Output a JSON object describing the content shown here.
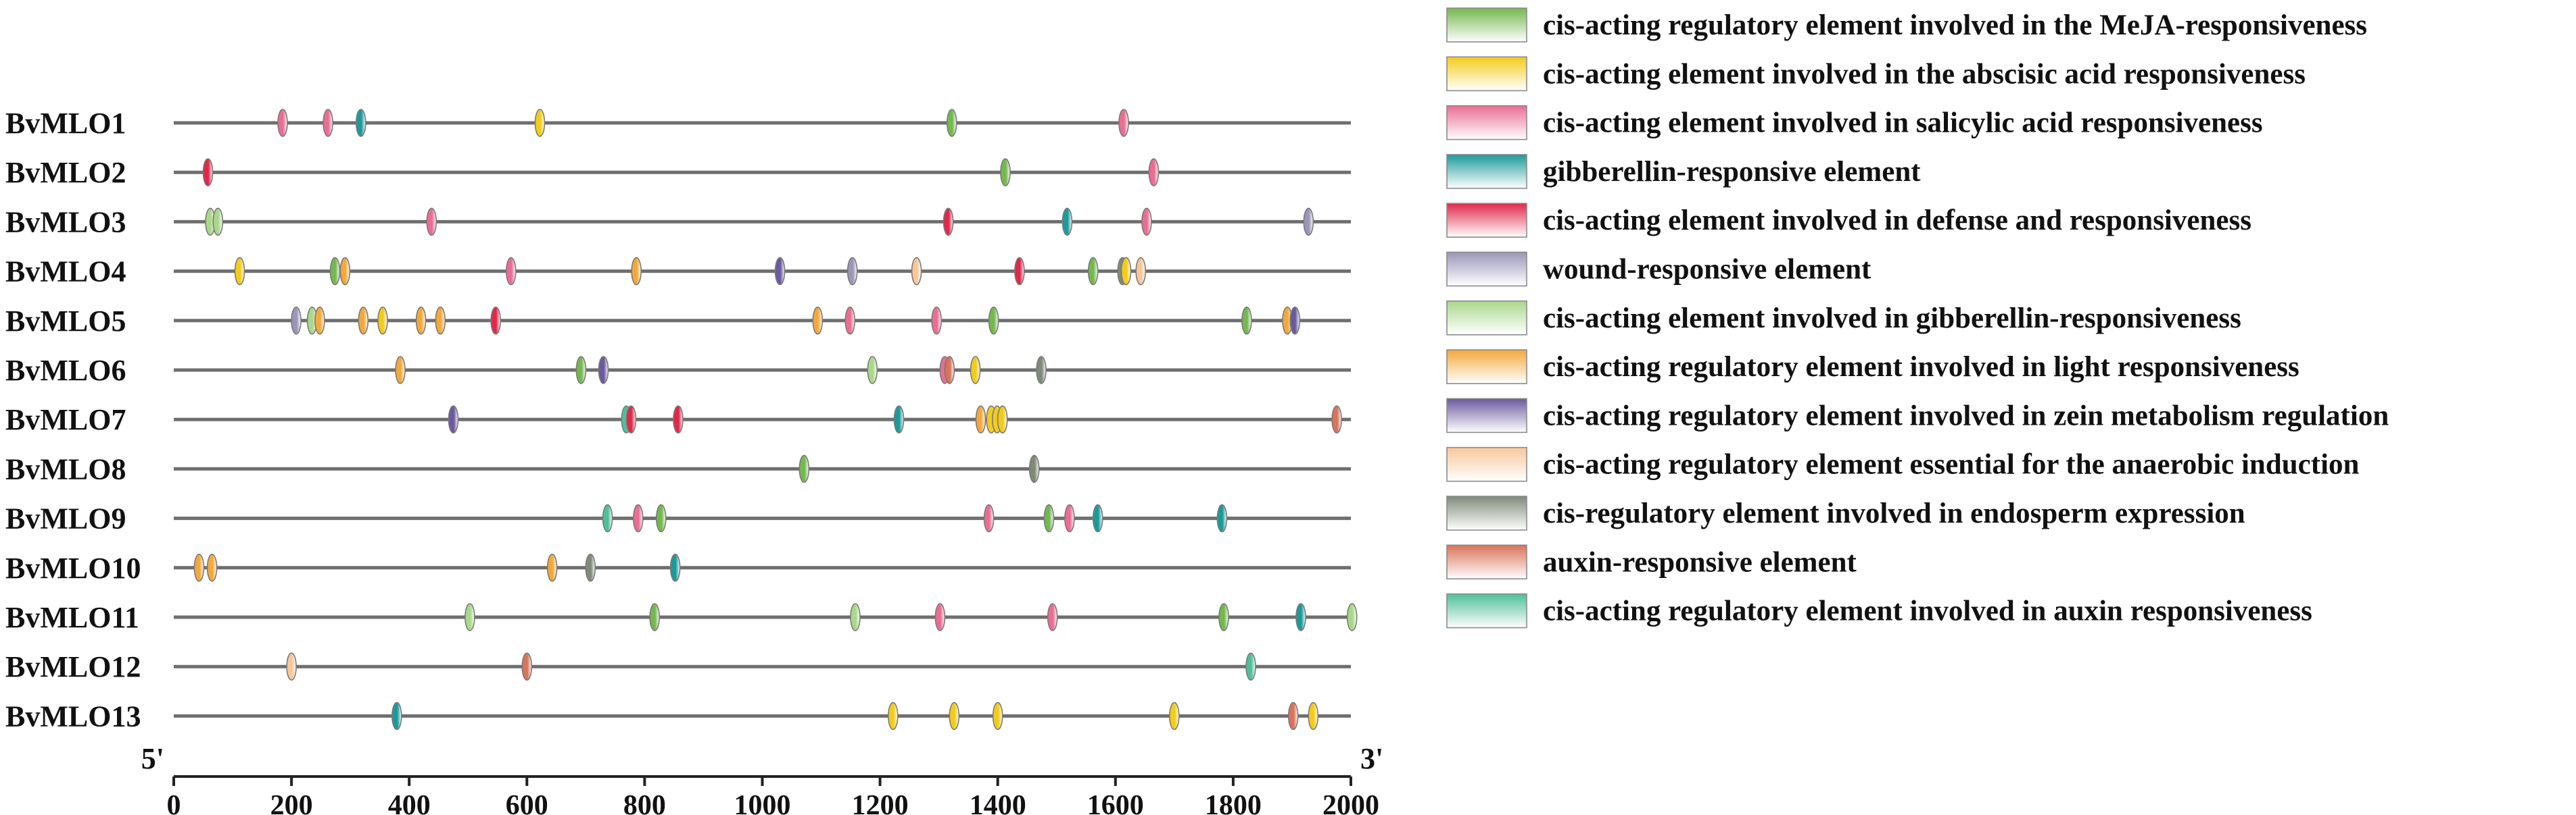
{
  "chart_data": {
    "type": "scatter",
    "title": "",
    "xlabel": "",
    "ylabel": "",
    "xlim": [
      0,
      2000
    ],
    "x_ticks": [
      0,
      200,
      400,
      600,
      800,
      1000,
      1200,
      1400,
      1600,
      1800,
      2000
    ],
    "end_labels": {
      "left": "5'",
      "right": "3'"
    },
    "legend": [
      {
        "key": "meja",
        "label": "cis-acting regulatory element involved in the MeJA-responsiveness",
        "color": "#74b84e"
      },
      {
        "key": "aba",
        "label": "cis-acting element involved in the abscisic acid responsiveness",
        "color": "#f2cc1a"
      },
      {
        "key": "sa",
        "label": "cis-acting element involved in salicylic acid responsiveness",
        "color": "#ea6d94"
      },
      {
        "key": "gib",
        "label": "gibberellin-responsive element",
        "color": "#1c9a9a"
      },
      {
        "key": "def",
        "label": "cis-acting element involved in defense and responsiveness",
        "color": "#e0284a"
      },
      {
        "key": "wound",
        "label": "wound-responsive element",
        "color": "#9a96b8"
      },
      {
        "key": "gib2",
        "label": "cis-acting element involved in gibberellin-responsiveness",
        "color": "#a9d88a"
      },
      {
        "key": "light",
        "label": "cis-acting regulatory element involved in light responsiveness",
        "color": "#f2a93b"
      },
      {
        "key": "zein",
        "label": "cis-acting regulatory element involved in zein metabolism regulation",
        "color": "#6c5a9e"
      },
      {
        "key": "anaer",
        "label": "cis-acting regulatory element essential for the anaerobic induction",
        "color": "#f7c79a"
      },
      {
        "key": "endo",
        "label": "cis-regulatory element involved in endosperm expression",
        "color": "#7f8a78"
      },
      {
        "key": "auxin",
        "label": "auxin-responsive element",
        "color": "#d9735a"
      },
      {
        "key": "auxin2",
        "label": "cis-acting regulatory element involved in auxin responsiveness",
        "color": "#4fbf9a"
      }
    ],
    "series": [
      {
        "name": "BvMLO1",
        "elements": [
          {
            "x": 185,
            "type": "sa"
          },
          {
            "x": 262,
            "type": "sa"
          },
          {
            "x": 318,
            "type": "gib"
          },
          {
            "x": 622,
            "type": "aba"
          },
          {
            "x": 1322,
            "type": "meja"
          },
          {
            "x": 1614,
            "type": "sa"
          }
        ]
      },
      {
        "name": "BvMLO2",
        "elements": [
          {
            "x": 58,
            "type": "def"
          },
          {
            "x": 1413,
            "type": "meja"
          },
          {
            "x": 1665,
            "type": "sa"
          }
        ]
      },
      {
        "name": "BvMLO3",
        "elements": [
          {
            "x": 62,
            "type": "gib2"
          },
          {
            "x": 75,
            "type": "gib2"
          },
          {
            "x": 438,
            "type": "sa"
          },
          {
            "x": 1316,
            "type": "def"
          },
          {
            "x": 1518,
            "type": "gib"
          },
          {
            "x": 1653,
            "type": "sa"
          },
          {
            "x": 1928,
            "type": "wound"
          }
        ]
      },
      {
        "name": "BvMLO4",
        "elements": [
          {
            "x": 112,
            "type": "aba"
          },
          {
            "x": 274,
            "type": "meja"
          },
          {
            "x": 291,
            "type": "light"
          },
          {
            "x": 573,
            "type": "sa"
          },
          {
            "x": 786,
            "type": "light"
          },
          {
            "x": 1030,
            "type": "zein"
          },
          {
            "x": 1153,
            "type": "wound"
          },
          {
            "x": 1262,
            "type": "anaer"
          },
          {
            "x": 1437,
            "type": "def"
          },
          {
            "x": 1562,
            "type": "meja"
          },
          {
            "x": 1612,
            "type": "endo"
          },
          {
            "x": 1618,
            "type": "aba"
          },
          {
            "x": 1643,
            "type": "anaer"
          }
        ]
      },
      {
        "name": "BvMLO5",
        "elements": [
          {
            "x": 208,
            "type": "wound"
          },
          {
            "x": 235,
            "type": "gib2"
          },
          {
            "x": 248,
            "type": "light"
          },
          {
            "x": 322,
            "type": "light"
          },
          {
            "x": 355,
            "type": "aba"
          },
          {
            "x": 420,
            "type": "light"
          },
          {
            "x": 453,
            "type": "light"
          },
          {
            "x": 547,
            "type": "def"
          },
          {
            "x": 1094,
            "type": "light"
          },
          {
            "x": 1149,
            "type": "sa"
          },
          {
            "x": 1296,
            "type": "sa"
          },
          {
            "x": 1393,
            "type": "meja"
          },
          {
            "x": 1823,
            "type": "meja"
          },
          {
            "x": 1892,
            "type": "light"
          },
          {
            "x": 1905,
            "type": "zein"
          }
        ]
      },
      {
        "name": "BvMLO6",
        "elements": [
          {
            "x": 385,
            "type": "light"
          },
          {
            "x": 692,
            "type": "meja"
          },
          {
            "x": 730,
            "type": "zein"
          },
          {
            "x": 1187,
            "type": "gib2"
          },
          {
            "x": 1310,
            "type": "sa"
          },
          {
            "x": 1318,
            "type": "auxin"
          },
          {
            "x": 1362,
            "type": "aba"
          },
          {
            "x": 1474,
            "type": "endo"
          }
        ]
      },
      {
        "name": "BvMLO7",
        "elements": [
          {
            "x": 475,
            "type": "zein"
          },
          {
            "x": 769,
            "type": "auxin2"
          },
          {
            "x": 777,
            "type": "def"
          },
          {
            "x": 857,
            "type": "def"
          },
          {
            "x": 1232,
            "type": "gib"
          },
          {
            "x": 1371,
            "type": "light"
          },
          {
            "x": 1389,
            "type": "aba"
          },
          {
            "x": 1399,
            "type": "aba"
          },
          {
            "x": 1408,
            "type": "aba"
          },
          {
            "x": 1976,
            "type": "auxin"
          }
        ]
      },
      {
        "name": "BvMLO8",
        "elements": [
          {
            "x": 1071,
            "type": "meja"
          },
          {
            "x": 1462,
            "type": "endo"
          }
        ]
      },
      {
        "name": "BvMLO9",
        "elements": [
          {
            "x": 737,
            "type": "auxin2"
          },
          {
            "x": 789,
            "type": "sa"
          },
          {
            "x": 828,
            "type": "meja"
          },
          {
            "x": 1385,
            "type": "sa"
          },
          {
            "x": 1487,
            "type": "meja"
          },
          {
            "x": 1522,
            "type": "sa"
          },
          {
            "x": 1570,
            "type": "gib"
          },
          {
            "x": 1781,
            "type": "gib"
          }
        ]
      },
      {
        "name": "BvMLO10",
        "elements": [
          {
            "x": 43,
            "type": "light"
          },
          {
            "x": 65,
            "type": "light"
          },
          {
            "x": 643,
            "type": "light"
          },
          {
            "x": 708,
            "type": "endo"
          },
          {
            "x": 852,
            "type": "gib"
          }
        ]
      },
      {
        "name": "BvMLO11",
        "elements": [
          {
            "x": 503,
            "type": "gib2"
          },
          {
            "x": 817,
            "type": "meja"
          },
          {
            "x": 1158,
            "type": "gib2"
          },
          {
            "x": 1302,
            "type": "sa"
          },
          {
            "x": 1493,
            "type": "sa"
          },
          {
            "x": 1784,
            "type": "meja"
          },
          {
            "x": 1915,
            "type": "gib"
          },
          {
            "x": 2002,
            "type": "gib2"
          }
        ]
      },
      {
        "name": "BvMLO12",
        "elements": [
          {
            "x": 200,
            "type": "anaer"
          },
          {
            "x": 600,
            "type": "auxin"
          },
          {
            "x": 1830,
            "type": "auxin2"
          }
        ]
      },
      {
        "name": "BvMLO13",
        "elements": [
          {
            "x": 379,
            "type": "gib"
          },
          {
            "x": 1222,
            "type": "aba"
          },
          {
            "x": 1326,
            "type": "aba"
          },
          {
            "x": 1400,
            "type": "aba"
          },
          {
            "x": 1700,
            "type": "aba"
          },
          {
            "x": 1902,
            "type": "auxin"
          },
          {
            "x": 1936,
            "type": "aba"
          }
        ]
      }
    ]
  }
}
